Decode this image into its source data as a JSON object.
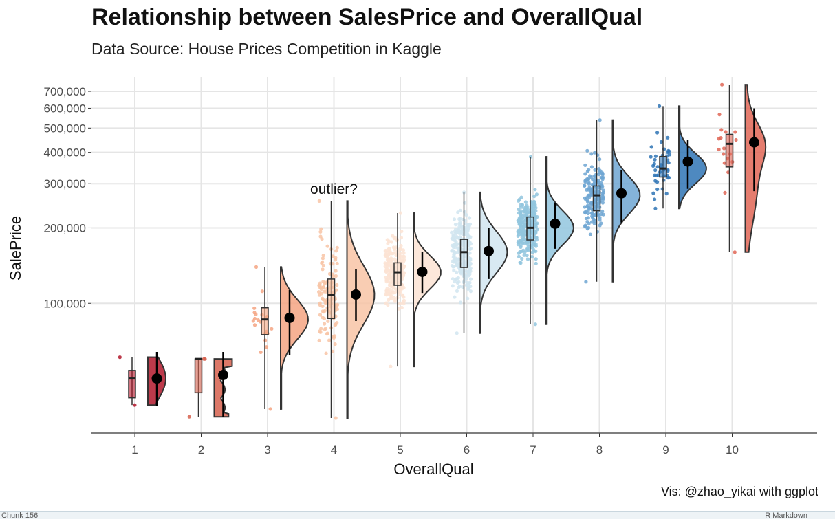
{
  "chart_data": {
    "type": "raincloud",
    "title": "Relationship between SalesPrice and OverallQual",
    "subtitle": "Data Source: House Prices Competition in Kaggle",
    "caption": "Vis: @zhao_yikai with ggplot",
    "xlabel": "OverallQual",
    "ylabel": "SalePrice",
    "y_scale": "log",
    "ylim": [
      34900,
      760000
    ],
    "grid": true,
    "legend": "none",
    "x_tick_labels": [
      "1",
      "2",
      "3",
      "4",
      "5",
      "6",
      "7",
      "8",
      "9",
      "10"
    ],
    "y_tick_values": [
      100000,
      200000,
      300000,
      400000,
      500000,
      600000,
      700000
    ],
    "y_tick_labels": [
      "100,000",
      "200,000",
      "300,000",
      "400,000",
      "500,000",
      "600,000",
      "700,000"
    ],
    "annotation": {
      "text": "outlier?",
      "x": 4,
      "y": 280000
    },
    "groups": [
      {
        "qual": "1",
        "color": "#b2182b",
        "n": 2,
        "min": 39300,
        "q1": 42000,
        "median": 50150,
        "q3": 54000,
        "max": 61000,
        "mean": 50150,
        "sd_low": 39000,
        "sd_high": 64000
      },
      {
        "qual": "2",
        "color": "#d6604d",
        "n": 3,
        "min": 35300,
        "q1": 44000,
        "median": 60000,
        "q3": 60000,
        "max": 60000,
        "mean": 51800,
        "sd_low": 35300,
        "sd_high": 64000
      },
      {
        "qual": "3",
        "color": "#f4a582",
        "n": 20,
        "min": 37900,
        "q1": 75000,
        "median": 86250,
        "q3": 96000,
        "max": 139600,
        "mean": 87500,
        "sd_low": 62000,
        "sd_high": 113000
      },
      {
        "qual": "4",
        "color": "#f8c4a6",
        "n": 116,
        "min": 34900,
        "q1": 87000,
        "median": 108000,
        "q3": 125000,
        "max": 256000,
        "mean": 108400,
        "sd_low": 85000,
        "sd_high": 137000
      },
      {
        "qual": "5",
        "color": "#fbe3d4",
        "n": 397,
        "min": 55993,
        "q1": 118000,
        "median": 133000,
        "q3": 145000,
        "max": 228950,
        "mean": 133500,
        "sd_low": 110000,
        "sd_high": 160000
      },
      {
        "qual": "6",
        "color": "#d1e5f0",
        "n": 374,
        "min": 76000,
        "q1": 139000,
        "median": 160000,
        "q3": 180000,
        "max": 277000,
        "mean": 161600,
        "sd_low": 125000,
        "sd_high": 200000
      },
      {
        "qual": "7",
        "color": "#92c5de",
        "n": 319,
        "min": 82500,
        "q1": 179000,
        "median": 200141,
        "q3": 221000,
        "max": 383970,
        "mean": 207700,
        "sd_low": 165000,
        "sd_high": 252000
      },
      {
        "qual": "8",
        "color": "#6ea6d2",
        "n": 168,
        "min": 122000,
        "q1": 234000,
        "median": 269750,
        "q3": 294000,
        "max": 538000,
        "mean": 274700,
        "sd_low": 210000,
        "sd_high": 340000
      },
      {
        "qual": "9",
        "color": "#2f74b5",
        "n": 43,
        "min": 239000,
        "q1": 319000,
        "median": 345000,
        "q3": 385000,
        "max": 611657,
        "mean": 367500,
        "sd_low": 286000,
        "sd_high": 448000
      },
      {
        "qual": "10",
        "color": "#e06656",
        "n": 18,
        "min": 160000,
        "q1": 350000,
        "median": 432390,
        "q3": 472000,
        "max": 745000,
        "mean": 438600,
        "sd_low": 280000,
        "sd_high": 600000
      }
    ]
  },
  "status": {
    "left": "Chunk 156",
    "right": "R Markdown"
  }
}
